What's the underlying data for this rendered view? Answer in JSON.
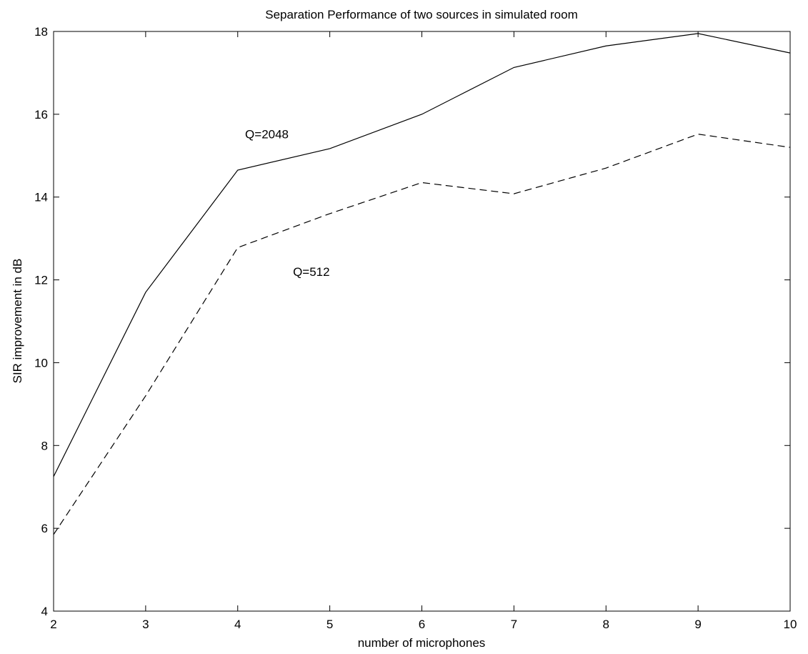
{
  "chart_data": {
    "type": "line",
    "title": "Separation Performance of two sources in simulated room",
    "xlabel": "number of microphones",
    "ylabel": "SIR improvement in dB",
    "xlim": [
      2,
      10
    ],
    "ylim": [
      4,
      18
    ],
    "xticks": [
      "2",
      "3",
      "4",
      "5",
      "6",
      "7",
      "8",
      "9",
      "10"
    ],
    "yticks": [
      "4",
      "6",
      "8",
      "10",
      "12",
      "14",
      "16",
      "18"
    ],
    "grid": false,
    "x": [
      2,
      3,
      4,
      5,
      6,
      7,
      8,
      9,
      10
    ],
    "series": [
      {
        "name": "Q=2048",
        "line_style": "solid",
        "color": "#000000",
        "values": [
          7.25,
          11.7,
          14.65,
          15.17,
          16.0,
          17.13,
          17.65,
          17.95,
          17.48
        ]
      },
      {
        "name": "Q=512",
        "line_style": "dashed",
        "color": "#000000",
        "values": [
          5.85,
          9.2,
          12.78,
          13.6,
          14.35,
          14.08,
          14.7,
          15.52,
          15.2
        ]
      }
    ],
    "annotations": [
      {
        "text": "Q=2048",
        "x": 4.08,
        "y": 15.42
      },
      {
        "text": "Q=512",
        "x": 4.6,
        "y": 12.1
      }
    ]
  }
}
